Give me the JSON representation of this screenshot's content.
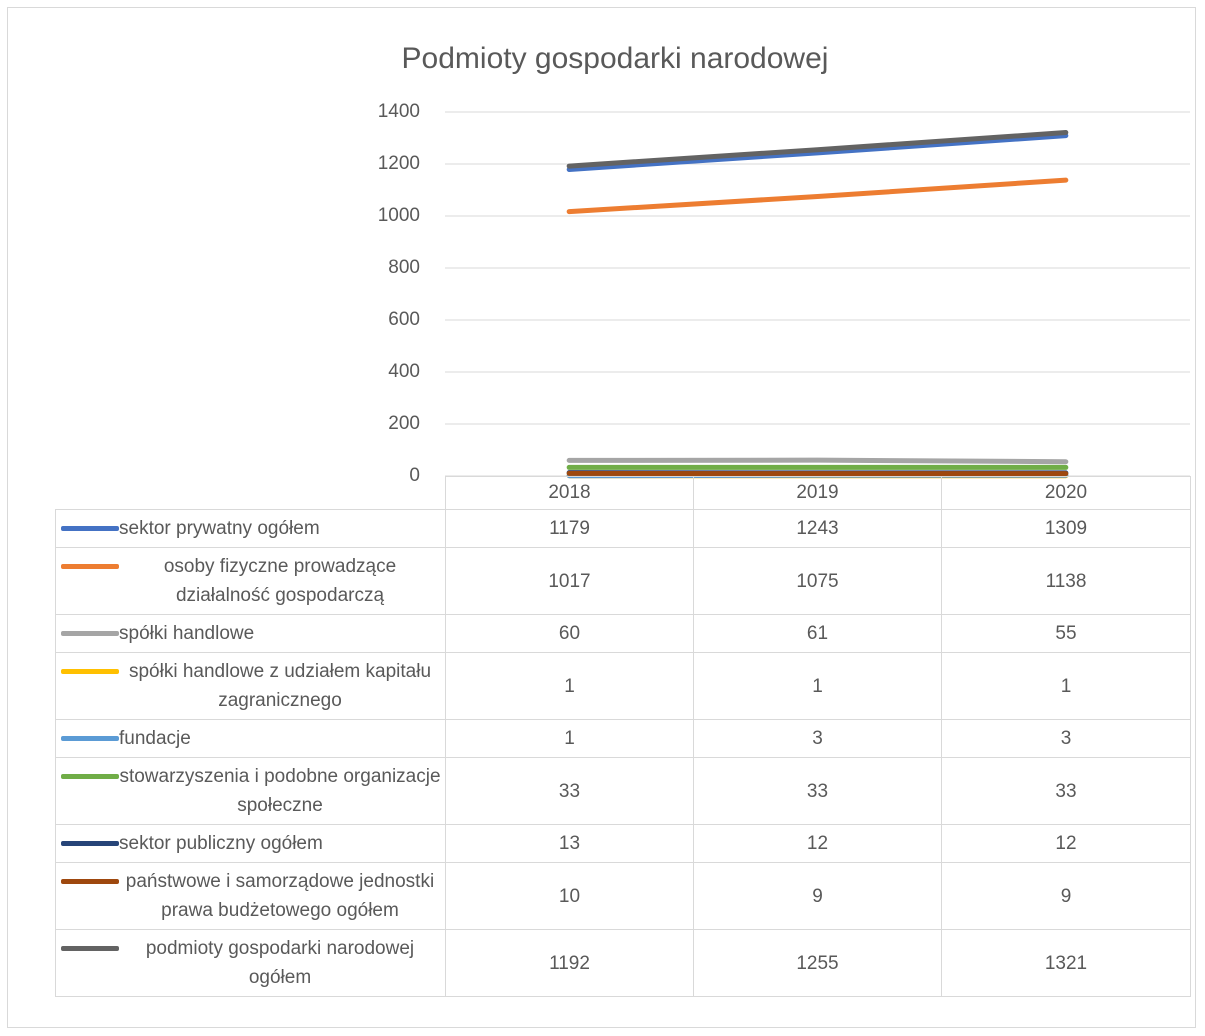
{
  "chart_data": {
    "type": "line",
    "title": "Podmioty gospodarki narodowej",
    "categories": [
      "2018",
      "2019",
      "2020"
    ],
    "series": [
      {
        "name": "sektor prywatny ogółem",
        "color": "#4472c4",
        "values": [
          1179,
          1243,
          1309
        ]
      },
      {
        "name": "osoby fizyczne prowadzące działalność gospodarczą",
        "color": "#ed7d31",
        "values": [
          1017,
          1075,
          1138
        ]
      },
      {
        "name": "spółki handlowe",
        "color": "#a5a5a5",
        "values": [
          60,
          61,
          55
        ]
      },
      {
        "name": "spółki handlowe z udziałem kapitału zagranicznego",
        "color": "#ffc000",
        "values": [
          1,
          1,
          1
        ]
      },
      {
        "name": "fundacje",
        "color": "#5b9bd5",
        "values": [
          1,
          3,
          3
        ]
      },
      {
        "name": "stowarzyszenia i podobne organizacje społeczne",
        "color": "#70ad47",
        "values": [
          33,
          33,
          33
        ]
      },
      {
        "name": "sektor publiczny ogółem",
        "color": "#264478",
        "values": [
          13,
          12,
          12
        ]
      },
      {
        "name": "państwowe i samorządowe jednostki prawa budżetowego ogółem",
        "color": "#9e480e",
        "values": [
          10,
          9,
          9
        ]
      },
      {
        "name": "podmioty gospodarki narodowej ogółem",
        "color": "#636363",
        "values": [
          1192,
          1255,
          1321
        ]
      }
    ],
    "ylim": [
      0,
      1400
    ],
    "yticks": [
      0,
      200,
      400,
      600,
      800,
      1000,
      1200,
      1400
    ],
    "grid": true
  }
}
